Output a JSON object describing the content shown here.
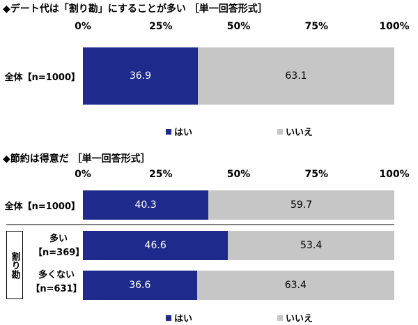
{
  "colors": {
    "yes": "#1f2b8c",
    "no": "#c6c6c6",
    "divider": "#7f7f7f"
  },
  "chart1": {
    "title": "◆デート代は「割り勘」にすることが多い ［単一回答形式］",
    "ticks": [
      "0%",
      "25%",
      "50%",
      "75%",
      "100%"
    ],
    "legend": {
      "yes": "はい",
      "no": "いいえ"
    }
  },
  "chart2": {
    "title": "◆節約は得意だ ［単一回答形式］",
    "ticks": [
      "0%",
      "25%",
      "50%",
      "75%",
      "100%"
    ],
    "legend": {
      "yes": "はい",
      "no": "いいえ"
    },
    "group_label": "割り勘"
  },
  "chart_data": [
    {
      "type": "bar",
      "orientation": "horizontal",
      "stacked": true,
      "title": "◆デート代は「割り勘」にすることが多い ［単一回答形式］",
      "categories": [
        "全体【n=1000】"
      ],
      "series": [
        {
          "name": "はい",
          "values": [
            36.9
          ]
        },
        {
          "name": "いいえ",
          "values": [
            63.1
          ]
        }
      ],
      "xlim": [
        0,
        100
      ],
      "legend_position": "bottom"
    },
    {
      "type": "bar",
      "orientation": "horizontal",
      "stacked": true,
      "title": "◆節約は得意だ ［単一回答形式］",
      "categories": [
        "全体【n=1000】",
        "多い 【n=369】",
        "多くない 【n=631】"
      ],
      "series": [
        {
          "name": "はい",
          "values": [
            40.3,
            46.6,
            36.6
          ]
        },
        {
          "name": "いいえ",
          "values": [
            59.7,
            53.4,
            63.4
          ]
        }
      ],
      "xlim": [
        0,
        100
      ],
      "legend_position": "bottom"
    }
  ],
  "rows2": [
    {
      "line1": "全体【n=1000】"
    },
    {
      "line1": "多い",
      "line2": "【n=369】"
    },
    {
      "line1": "多くない",
      "line2": "【n=631】"
    }
  ]
}
